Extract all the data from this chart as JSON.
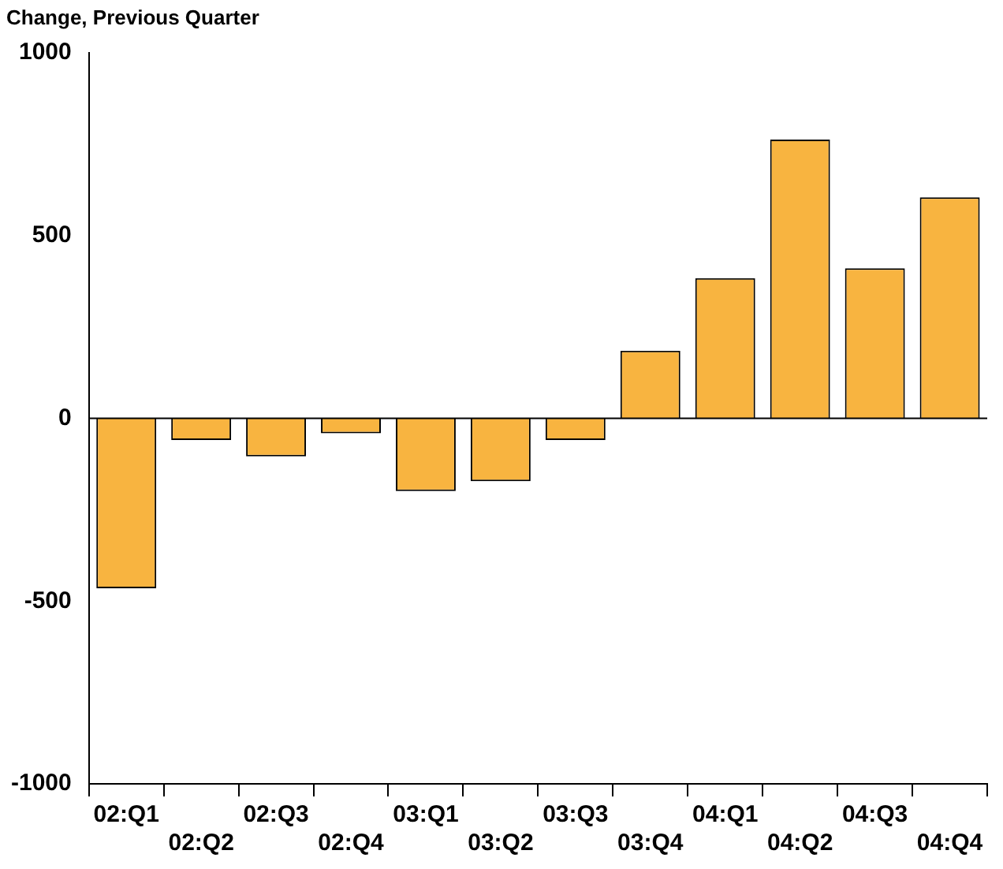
{
  "chart_data": {
    "type": "bar",
    "title": "Change, Previous Quarter",
    "categories": [
      "02:Q1",
      "02:Q2",
      "02:Q3",
      "02:Q4",
      "03:Q1",
      "03:Q2",
      "03:Q3",
      "03:Q4",
      "04:Q1",
      "04:Q2",
      "04:Q3",
      "04:Q4"
    ],
    "values": [
      -465,
      -59,
      -104,
      -41,
      -199,
      -172,
      -59,
      185,
      384,
      763,
      411,
      605
    ],
    "color": "#f8b440",
    "ylim": [
      -1000,
      1000
    ],
    "yticks": [
      -1000,
      -500,
      0,
      500,
      1000
    ],
    "legend": false
  }
}
